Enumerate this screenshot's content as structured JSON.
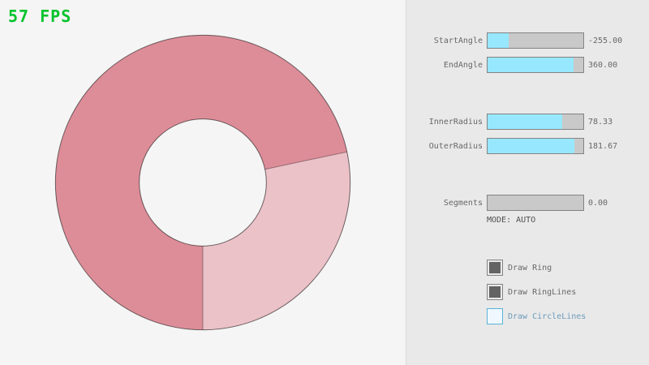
{
  "fps": {
    "text": "57 FPS"
  },
  "ring": {
    "start_angle": -255.0,
    "end_angle": 360.0,
    "inner_radius": 78.33,
    "outer_radius": 181.67,
    "segments": 0.0,
    "mode": "AUTO",
    "colors": {
      "ring_main": "#dd8d98",
      "ring_overlap_light": "#ebc2c8",
      "outline": "rgba(0,0,0,0.55)",
      "background": "#f5f5f5"
    }
  },
  "panel": {
    "sliders": [
      {
        "label": "StartAngle",
        "value": "-255.00",
        "fill_pct": 21.7
      },
      {
        "label": "EndAngle",
        "value": "360.00",
        "fill_pct": 90.0
      },
      {
        "label": "InnerRadius",
        "value": "78.33",
        "fill_pct": 78.3
      },
      {
        "label": "OuterRadius",
        "value": "181.67",
        "fill_pct": 90.8
      },
      {
        "label": "Segments",
        "value": "0.00",
        "fill_pct": 0
      }
    ],
    "mode_text": "MODE: AUTO",
    "checkboxes": [
      {
        "label": "Draw Ring",
        "checked": true,
        "focused": false
      },
      {
        "label": "Draw RingLines",
        "checked": true,
        "focused": false
      },
      {
        "label": "Draw CircleLines",
        "checked": false,
        "focused": true
      }
    ],
    "colors": {
      "slider_fill": "#97e8ff",
      "slider_track": "#c9c9c9",
      "focus_blue": "#5bb2d9",
      "fps_green": "#00c32c"
    }
  }
}
